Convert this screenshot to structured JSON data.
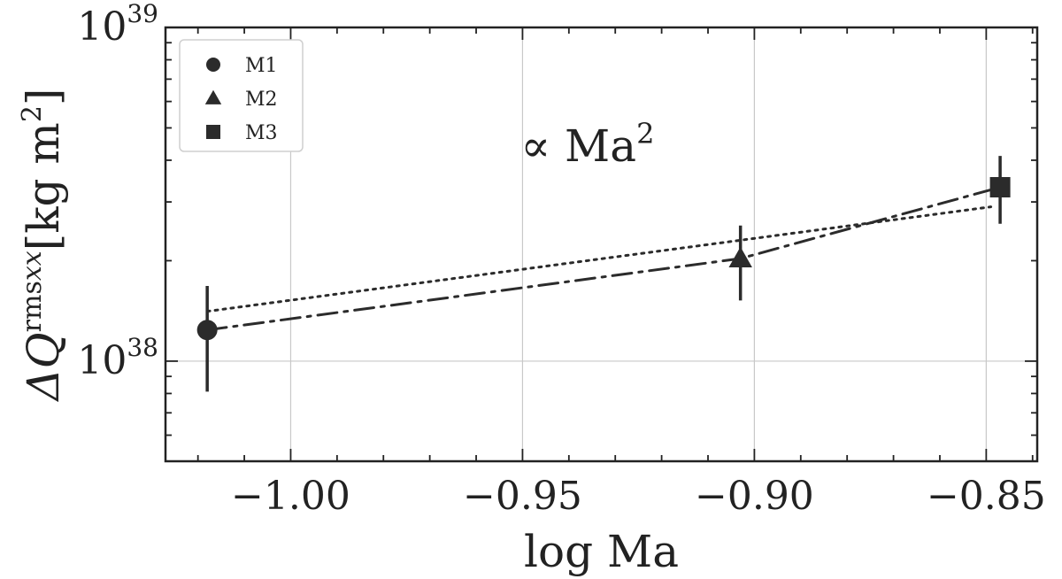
{
  "chart_data": {
    "type": "scatter",
    "xlabel": "log Ma",
    "ylabel": "ΔQ",
    "ylabel_sup": "rms",
    "ylabel_sub": "xx",
    "ylabel_unit": "[kg m",
    "ylabel_unit_sup": "2",
    "ylabel_unit_end": "]",
    "xlim": [
      -1.027,
      -0.839
    ],
    "ylim_log10": [
      37.7,
      39.0
    ],
    "y_scale": "log",
    "grid": true,
    "legend_position": "top-left",
    "x_ticks": [
      {
        "value": -1.0,
        "label": "−1.00"
      },
      {
        "value": -0.95,
        "label": "−0.95"
      },
      {
        "value": -0.9,
        "label": "−0.90"
      },
      {
        "value": -0.85,
        "label": "−0.85"
      }
    ],
    "y_ticks": [
      {
        "exp": 38,
        "base": "10",
        "sup": "38"
      },
      {
        "exp": 39,
        "base": "10",
        "sup": "39"
      }
    ],
    "points": [
      {
        "name": "M1",
        "marker": "circle",
        "x": -1.018,
        "y": 1.24e+38,
        "y_err_low": 8.1e+37,
        "y_err_high": 1.68e+38
      },
      {
        "name": "M2",
        "marker": "triangle",
        "x": -0.903,
        "y": 2.03e+38,
        "y_err_low": 1.52e+38,
        "y_err_high": 2.55e+38
      },
      {
        "name": "M3",
        "marker": "square",
        "x": -0.847,
        "y": 3.32e+38,
        "y_err_low": 2.58e+38,
        "y_err_high": 4.12e+38
      }
    ],
    "fit_lines": [
      {
        "style": "dotted",
        "x": [
          -1.018,
          -0.849
        ],
        "y": [
          1.41e+38,
          2.9e+38
        ]
      },
      {
        "style": "dashdot",
        "x": [
          -1.018,
          -0.903,
          -0.847
        ],
        "y": [
          1.24e+38,
          2.03e+38,
          3.32e+38
        ]
      }
    ],
    "annotation": {
      "text": "∝ Ma",
      "sup": "2",
      "x": -0.917,
      "y": 3.7e+38
    },
    "colors": {
      "marks": "#2b2b2b",
      "grid": "#c8c8c8",
      "axes": "#222222"
    }
  }
}
